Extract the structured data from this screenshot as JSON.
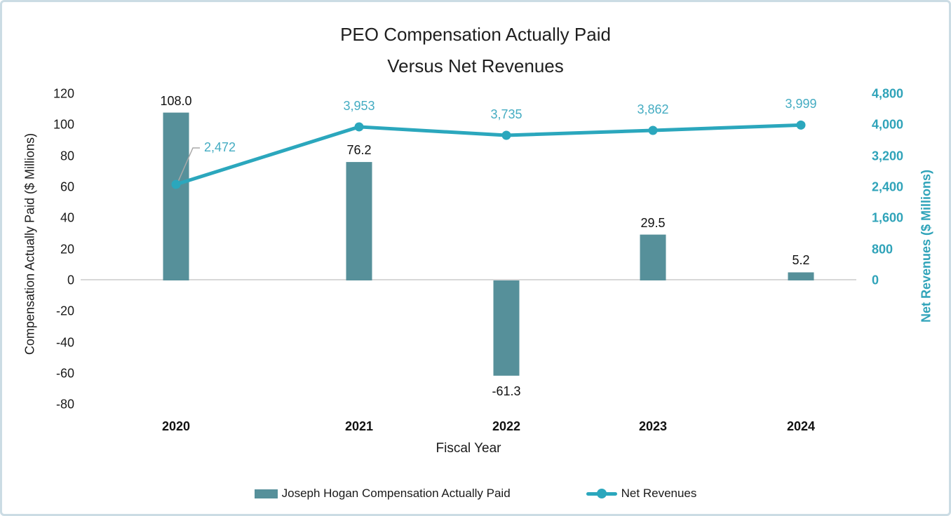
{
  "title": {
    "line1": "PEO Compensation Actually Paid",
    "line2": "Versus Net Revenues"
  },
  "chart_data": {
    "type": "combo-bar-line",
    "title": "PEO Compensation Actually Paid Versus Net Revenues",
    "xlabel": "Fiscal Year",
    "categories": [
      "2020",
      "2021",
      "2022",
      "2023",
      "2024"
    ],
    "series": [
      {
        "name": "Joseph Hogan Compensation Actually Paid",
        "type": "bar",
        "axis": "left",
        "values": [
          108.0,
          76.2,
          -61.3,
          29.5,
          5.2
        ],
        "labels": [
          "108.0",
          "76.2",
          "-61.3",
          "29.5",
          "5.2"
        ],
        "color": "#56909a"
      },
      {
        "name": "Net Revenues",
        "type": "line",
        "axis": "right",
        "values": [
          2472,
          3953,
          3735,
          3862,
          3999
        ],
        "labels": [
          "2,472",
          "3,953",
          "3,735",
          "3,862",
          "3,999"
        ],
        "color": "#2ba7bd"
      }
    ],
    "left_axis": {
      "title": "Compensation Actually Paid ($ Millions)",
      "ticks": [
        120,
        100,
        80,
        60,
        40,
        20,
        0,
        -20,
        -40,
        -60,
        -80
      ],
      "tick_labels": [
        "120",
        "100",
        "80",
        "60",
        "40",
        "20",
        "0",
        "-20",
        "-40",
        "-60",
        "-80"
      ],
      "range": [
        -80,
        120
      ]
    },
    "right_axis": {
      "title": "Net Revenues ($ Millions)",
      "ticks": [
        4800,
        4000,
        3200,
        2400,
        1600,
        800,
        0
      ],
      "tick_labels": [
        "4,800",
        "4,000",
        "3,200",
        "2,400",
        "1,600",
        "800",
        "0"
      ],
      "visible_range": [
        0,
        4800
      ]
    },
    "gridlines": "zero-line-only",
    "legend_position": "bottom",
    "annotations": [
      {
        "target_series": "Net Revenues",
        "target_category": "2020",
        "text": "2,472",
        "style": "callout-with-gray-leader-line"
      }
    ]
  },
  "legend": {
    "items": [
      {
        "label": "Joseph Hogan Compensation Actually Paid",
        "swatch": "bar",
        "color": "#56909a"
      },
      {
        "label": "Net Revenues",
        "swatch": "line-with-marker",
        "color": "#2ba7bd"
      }
    ]
  },
  "colors": {
    "bar": "#56909a",
    "line": "#2ba7bd",
    "teal_label_text": "#44acc2",
    "right_axis_text": "#2fa3b9",
    "zero_gridline": "#d8d8d8",
    "leader_line": "#a8a8a8",
    "border": "#cbdce4",
    "title_text": "#1f1f1f"
  }
}
